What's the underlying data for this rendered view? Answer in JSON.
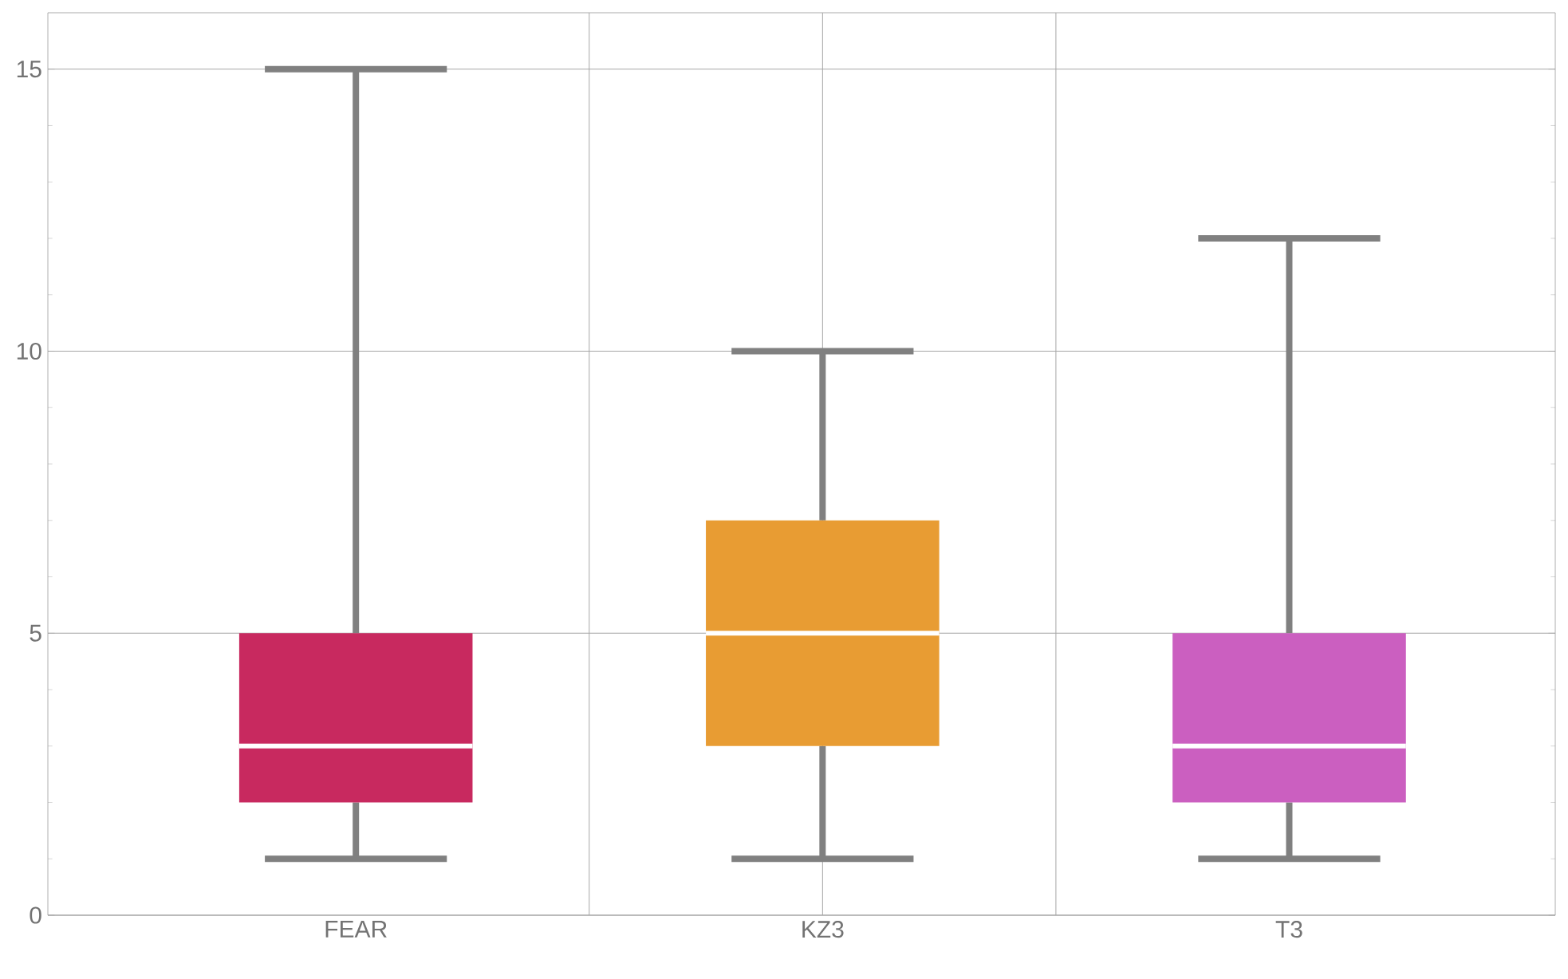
{
  "chart_data": {
    "type": "box",
    "categories": [
      "FEAR",
      "KZ3",
      "T3"
    ],
    "boxes": [
      {
        "low": 1,
        "q1": 2,
        "median": 3,
        "q3": 5,
        "high": 15
      },
      {
        "low": 1,
        "q1": 3,
        "median": 5,
        "q3": 7,
        "high": 10
      },
      {
        "low": 1,
        "q1": 2,
        "median": 3,
        "q3": 5,
        "high": 12
      }
    ],
    "colors": [
      "#c8295f",
      "#e89c33",
      "#cb5fc0"
    ],
    "ylim": [
      0,
      16
    ],
    "yticks": [
      0,
      5,
      10,
      15
    ],
    "grid": true
  }
}
